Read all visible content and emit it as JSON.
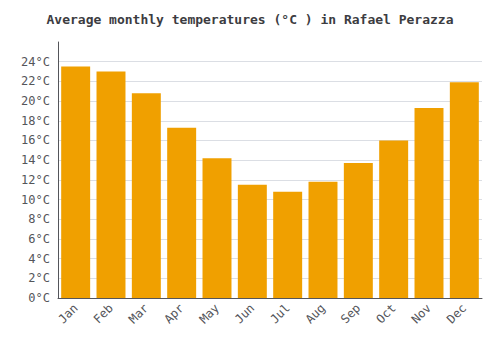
{
  "chart_data": {
    "type": "bar",
    "title": "Average monthly temperatures (°C ) in Rafael Perazza",
    "categories": [
      "Jan",
      "Feb",
      "Mar",
      "Apr",
      "May",
      "Jun",
      "Jul",
      "Aug",
      "Sep",
      "Oct",
      "Nov",
      "Dec"
    ],
    "values": [
      23.5,
      23.0,
      20.8,
      17.3,
      14.2,
      11.5,
      10.8,
      11.8,
      13.7,
      16.0,
      19.3,
      21.9
    ],
    "color": "#F0A000",
    "ylim": [
      0,
      26
    ],
    "yticks": [
      {
        "value": 0,
        "label": "0°C"
      },
      {
        "value": 2,
        "label": "2°C"
      },
      {
        "value": 4,
        "label": "4°C"
      },
      {
        "value": 6,
        "label": "6°C"
      },
      {
        "value": 8,
        "label": "8°C"
      },
      {
        "value": 10,
        "label": "10°C"
      },
      {
        "value": 12,
        "label": "12°C"
      },
      {
        "value": 14,
        "label": "14°C"
      },
      {
        "value": 16,
        "label": "16°C"
      },
      {
        "value": 18,
        "label": "18°C"
      },
      {
        "value": 20,
        "label": "20°C"
      },
      {
        "value": 22,
        "label": "22°C"
      },
      {
        "value": 24,
        "label": "24°C"
      }
    ],
    "grid": true
  }
}
